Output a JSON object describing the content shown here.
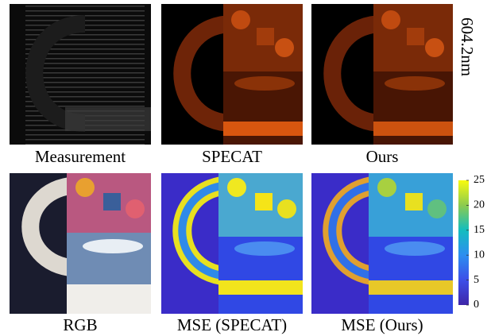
{
  "panels": [
    {
      "label": "Measurement"
    },
    {
      "label": "SPECAT"
    },
    {
      "label": "Ours"
    },
    {
      "label": "RGB"
    },
    {
      "label": "MSE (SPECAT)"
    },
    {
      "label": "MSE (Ours)"
    }
  ],
  "wavelength_label": "604.2nm",
  "colorbar": {
    "range": [
      0,
      25
    ],
    "ticks": [
      0,
      5,
      10,
      15,
      20,
      25
    ]
  }
}
